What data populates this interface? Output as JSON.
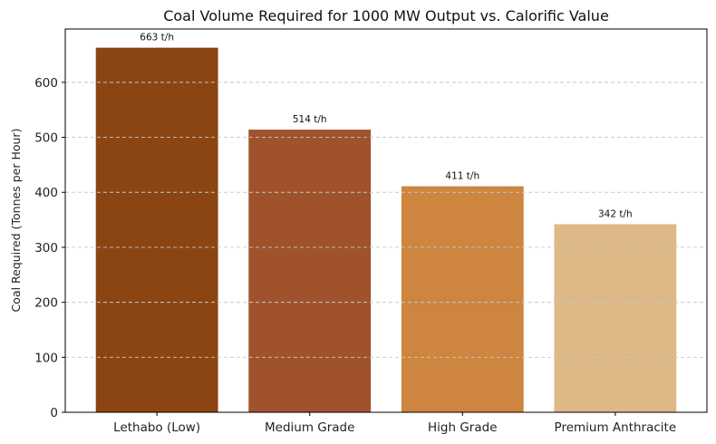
{
  "chart_data": {
    "type": "bar",
    "title": "Coal Volume Required for 1000 MW Output vs. Calorific Value",
    "xlabel": "",
    "ylabel": "Coal Required (Tonnes per Hour)",
    "categories": [
      "Lethabo (Low)",
      "Medium Grade",
      "High Grade",
      "Premium Anthracite"
    ],
    "values": [
      663,
      514,
      411,
      342
    ],
    "data_labels": [
      "663 t/h",
      "514 t/h",
      "411 t/h",
      "342 t/h"
    ],
    "colors": [
      "#8B4513",
      "#A0522D",
      "#CD853F",
      "#DEB887"
    ],
    "ylim": [
      0,
      697
    ],
    "yticks": [
      0,
      100,
      200,
      300,
      400,
      500,
      600
    ],
    "grid": "y-dashed",
    "legend": "none"
  }
}
